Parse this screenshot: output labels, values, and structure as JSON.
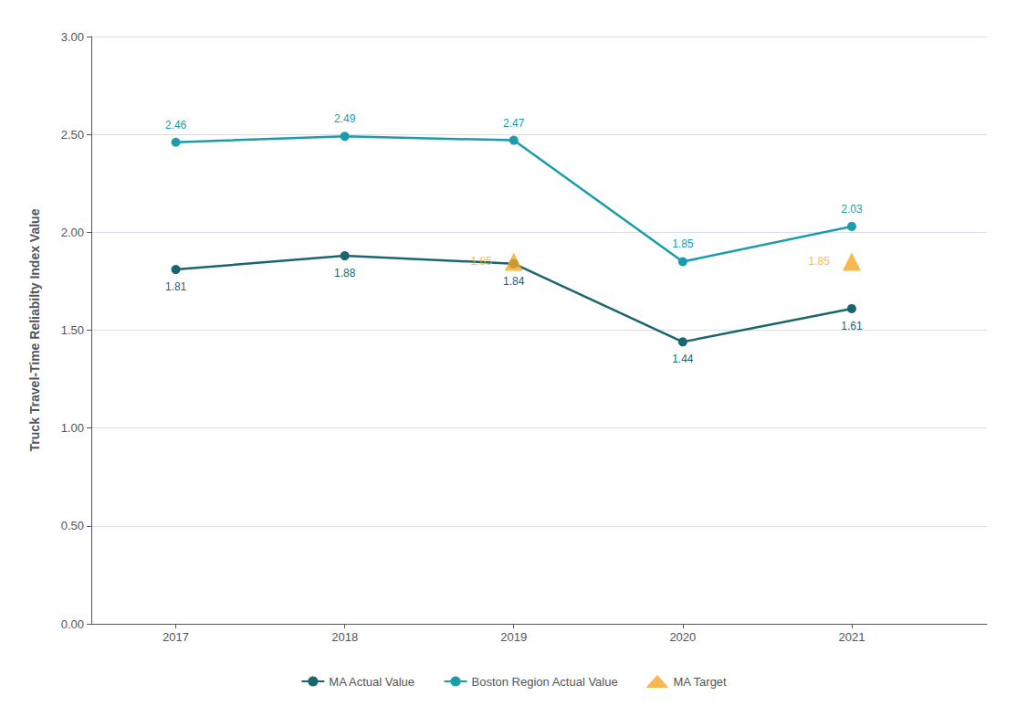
{
  "chart_data": {
    "type": "line",
    "y_label": "Truck Travel-Time Reliabilty Index Value",
    "x": [
      2017,
      2018,
      2019,
      2020,
      2021
    ],
    "series": [
      {
        "name": "MA Actual Value",
        "color": "#1a6570",
        "marker": "circle",
        "values": [
          1.81,
          1.88,
          1.84,
          1.44,
          1.61
        ]
      },
      {
        "name": "Boston Region Actual Value",
        "color": "#1a9daa",
        "marker": "circle",
        "values": [
          2.46,
          2.49,
          2.47,
          1.85,
          2.03
        ]
      },
      {
        "name": "MA Target",
        "type": "scatter",
        "color": "#f5a623",
        "marker": "triangle",
        "x": [
          2019,
          2021
        ],
        "values": [
          1.85,
          1.85
        ]
      }
    ],
    "xlim": [
      2016.5,
      2021.8
    ],
    "xticks": [
      2017,
      2018,
      2019,
      2020,
      2021
    ],
    "ylim": [
      0.0,
      3.0
    ],
    "yticks": [
      {
        "value": 0,
        "label": "0.00"
      },
      {
        "value": 0.5,
        "label": "0.50"
      },
      {
        "value": 1,
        "label": "1.00"
      },
      {
        "value": 1.5,
        "label": "1.50"
      },
      {
        "value": 2,
        "label": "2.00"
      },
      {
        "value": 2.5,
        "label": "2.50"
      },
      {
        "value": 3,
        "label": "3.00"
      }
    ],
    "grid": true,
    "legend": "bottom",
    "data_labels": true
  }
}
